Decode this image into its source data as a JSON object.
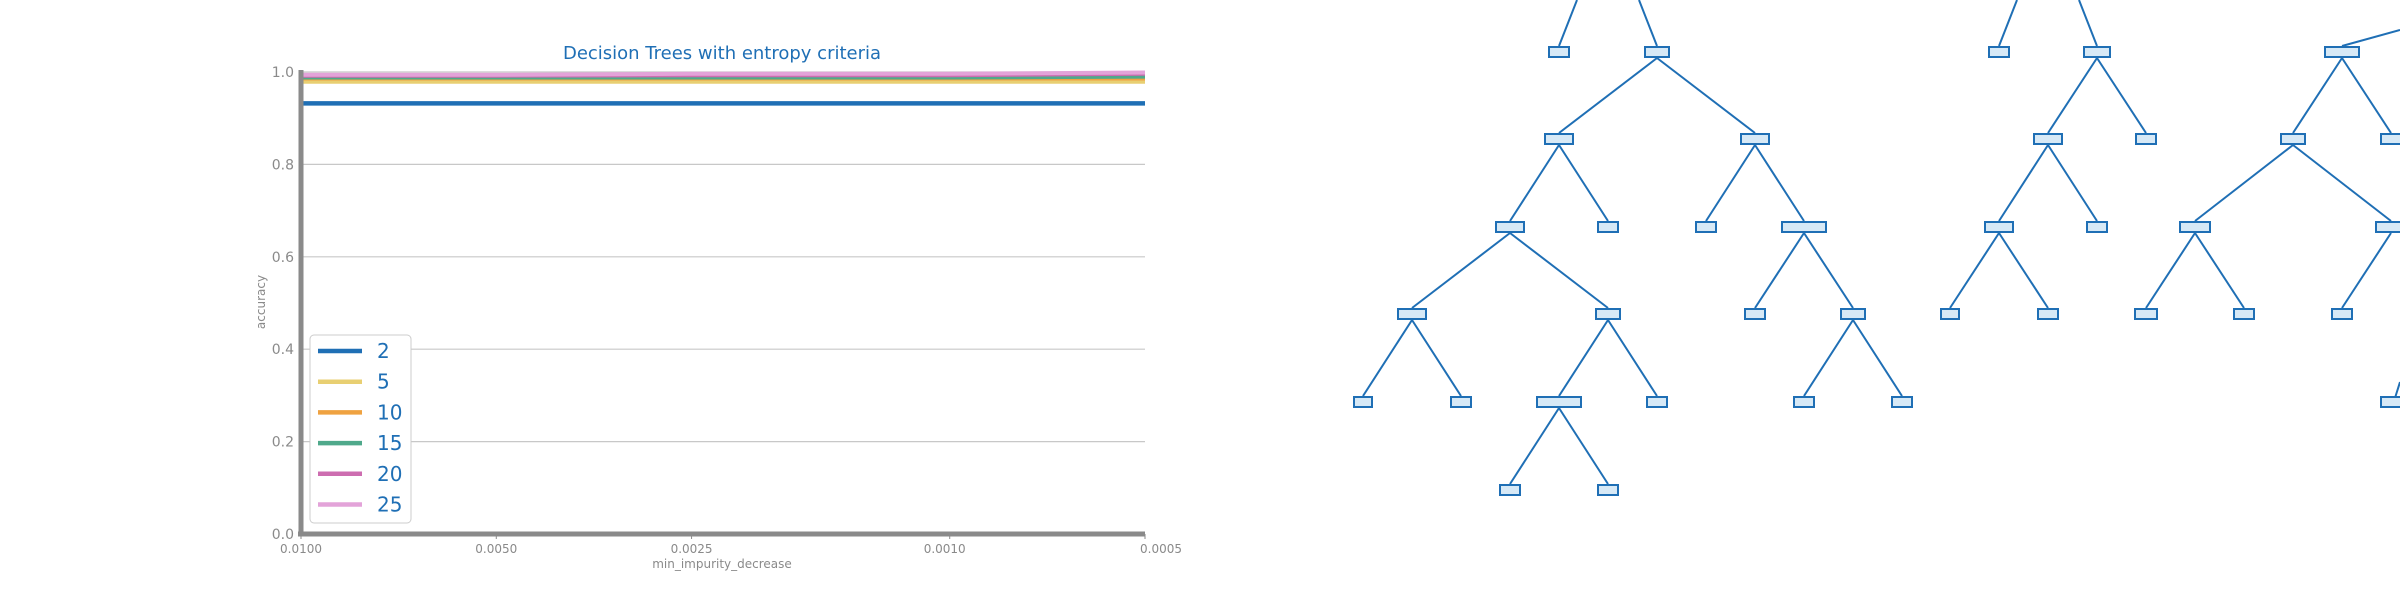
{
  "chart_data": {
    "type": "line",
    "title": "Decision Trees with entropy criteria",
    "xlabel": "min_impurity_decrease",
    "ylabel": "accuracy",
    "x_axis_reversed": true,
    "x_ticks": [
      0.01,
      0.005,
      0.0025,
      0.001,
      0.0005
    ],
    "x_tick_labels": [
      "0.0100",
      "0.0050",
      "0.0025",
      "0.0010",
      "0.0005"
    ],
    "x": [
      0.01,
      0.005,
      0.0025,
      0.001,
      0.0005
    ],
    "ylim": [
      0,
      1.0
    ],
    "y_ticks": [
      0.0,
      0.2,
      0.4,
      0.6,
      0.8,
      1.0
    ],
    "y_tick_labels": [
      "0.0",
      "0.2",
      "0.4",
      "0.6",
      "0.8",
      "1.0"
    ],
    "grid": "horizontal",
    "legend_position": "bottom-left",
    "series": [
      {
        "name": "2",
        "color": "#1f6fb5",
        "values": [
          0.932,
          0.932,
          0.932,
          0.932,
          0.932
        ]
      },
      {
        "name": "5",
        "color": "#e8cf72",
        "values": [
          0.979,
          0.979,
          0.979,
          0.979,
          0.979
        ]
      },
      {
        "name": "10",
        "color": "#efa241",
        "values": [
          0.986,
          0.986,
          0.986,
          0.986,
          0.986
        ]
      },
      {
        "name": "15",
        "color": "#4fa98b",
        "values": [
          0.988,
          0.988,
          0.988,
          0.988,
          0.99
        ]
      },
      {
        "name": "20",
        "color": "#cd6db0",
        "values": [
          0.992,
          0.992,
          0.993,
          0.993,
          0.996
        ]
      },
      {
        "name": "25",
        "color": "#e3a3d9",
        "values": [
          0.994,
          0.994,
          0.996,
          0.996,
          0.999
        ]
      }
    ]
  },
  "tree_panel": {
    "edge_color": "#1f6fb5",
    "node_fill": "#d7e9f6",
    "node_border": "#1f6fb5"
  }
}
